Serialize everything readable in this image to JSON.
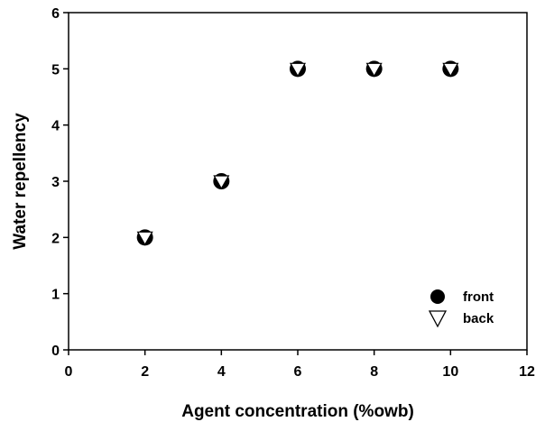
{
  "chart_data": {
    "type": "scatter",
    "xlabel": "Agent concentration (%owb)",
    "ylabel": "Water repellency",
    "xlim": [
      0,
      12
    ],
    "ylim": [
      0,
      6
    ],
    "x_ticks": [
      0,
      2,
      4,
      6,
      8,
      10,
      12
    ],
    "y_ticks": [
      0,
      1,
      2,
      3,
      4,
      5,
      6
    ],
    "grid": false,
    "legend_position": "bottom-right",
    "series": [
      {
        "name": "front",
        "marker": "filled-circle",
        "color": "#000000",
        "x": [
          2,
          4,
          6,
          8,
          10
        ],
        "y": [
          2,
          3,
          5,
          5,
          5
        ]
      },
      {
        "name": "back",
        "marker": "open-down-triangle",
        "color": "#000000",
        "x": [
          2,
          4,
          6,
          8,
          10
        ],
        "y": [
          2,
          3,
          5,
          5,
          5
        ]
      }
    ]
  }
}
